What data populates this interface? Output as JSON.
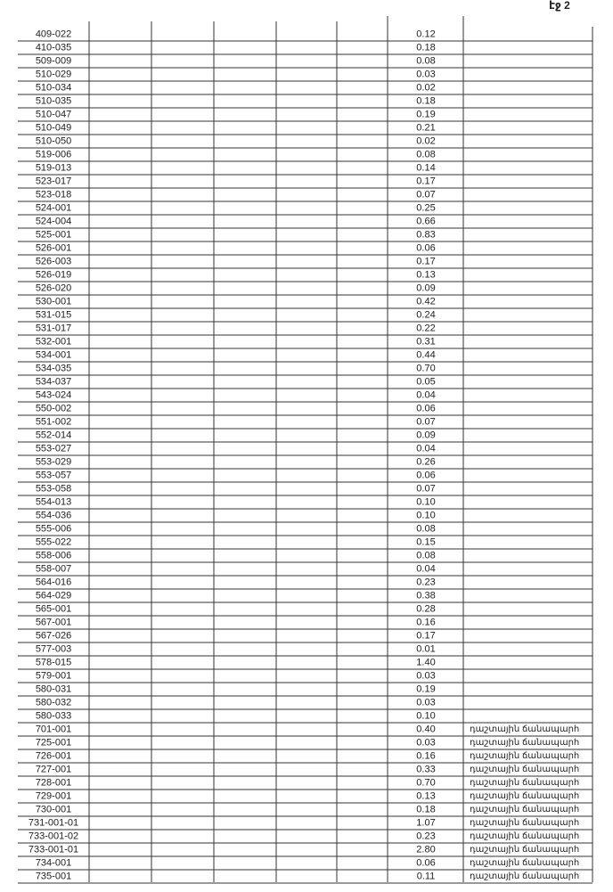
{
  "page": "էջ 2",
  "table": {
    "rows": [
      [
        "409-022",
        "0.12"
      ],
      [
        "410-035",
        "0.18"
      ],
      [
        "509-009",
        "0.08"
      ],
      [
        "510-029",
        "0.03"
      ],
      [
        "510-034",
        "0.02"
      ],
      [
        "510-035",
        "0.18"
      ],
      [
        "510-047",
        "0.19"
      ],
      [
        "510-049",
        "0.21"
      ],
      [
        "510-050",
        "0.02"
      ],
      [
        "519-006",
        "0.08"
      ],
      [
        "519-013",
        "0.14"
      ],
      [
        "523-017",
        "0.17"
      ],
      [
        "523-018",
        "0.07"
      ],
      [
        "524-001",
        "0.25"
      ],
      [
        "524-004",
        "0.66"
      ],
      [
        "525-001",
        "0.83"
      ],
      [
        "526-001",
        "0.06"
      ],
      [
        "526-003",
        "0.17"
      ],
      [
        "526-019",
        "0.13"
      ],
      [
        "526-020",
        "0.09"
      ],
      [
        "530-001",
        "0.42"
      ],
      [
        "531-015",
        "0.24"
      ],
      [
        "531-017",
        "0.22"
      ],
      [
        "532-001",
        "0.31"
      ],
      [
        "534-001",
        "0.44"
      ],
      [
        "534-035",
        "0.70"
      ],
      [
        "534-037",
        "0.05"
      ],
      [
        "543-024",
        "0.04"
      ],
      [
        "550-002",
        "0.06"
      ],
      [
        "551-002",
        "0.07"
      ],
      [
        "552-014",
        "0.09"
      ],
      [
        "553-027",
        "0.04"
      ],
      [
        "553-029",
        "0.26"
      ],
      [
        "553-057",
        "0.06"
      ],
      [
        "553-058",
        "0.07"
      ],
      [
        "554-013",
        "0.10"
      ],
      [
        "554-036",
        "0.10"
      ],
      [
        "555-006",
        "0.08"
      ],
      [
        "555-022",
        "0.15"
      ],
      [
        "558-006",
        "0.08"
      ],
      [
        "558-007",
        "0.04"
      ],
      [
        "564-016",
        "0.23"
      ],
      [
        "564-029",
        "0.38"
      ],
      [
        "565-001",
        "0.28"
      ],
      [
        "567-001",
        "0.16"
      ],
      [
        "567-026",
        "0.17"
      ],
      [
        "577-003",
        "0.01"
      ],
      [
        "578-015",
        "1.40"
      ],
      [
        "579-001",
        "0.03"
      ],
      [
        "580-031",
        "0.19"
      ],
      [
        "580-032",
        "0.03"
      ],
      [
        "580-033",
        "0.10"
      ],
      [
        "701-001",
        "0.40",
        "դաշտային ճանապարհ"
      ],
      [
        "725-001",
        "0.03",
        "դաշտային ճանապարհ"
      ],
      [
        "726-001",
        "0.16",
        "դաշտային ճանապարհ"
      ],
      [
        "727-001",
        "0.33",
        "դաշտային ճանապարհ"
      ],
      [
        "728-001",
        "0.70",
        "դաշտային ճանապարհ"
      ],
      [
        "729-001",
        "0.13",
        "դաշտային ճանապարհ"
      ],
      [
        "730-001",
        "0.18",
        "դաշտային ճանապարհ"
      ],
      [
        "731-001-01",
        "1.07",
        "դաշտային ճանապարհ"
      ],
      [
        "733-001-02",
        "0.23",
        "դաշտային ճանապարհ"
      ],
      [
        "733-001-01",
        "2.80",
        "դաշտային ճանապարհ"
      ],
      [
        "734-001",
        "0.06",
        "դաշտային ճանապարհ"
      ],
      [
        "735-001",
        "0.11",
        "դաշտային ճանապարհ"
      ]
    ]
  }
}
